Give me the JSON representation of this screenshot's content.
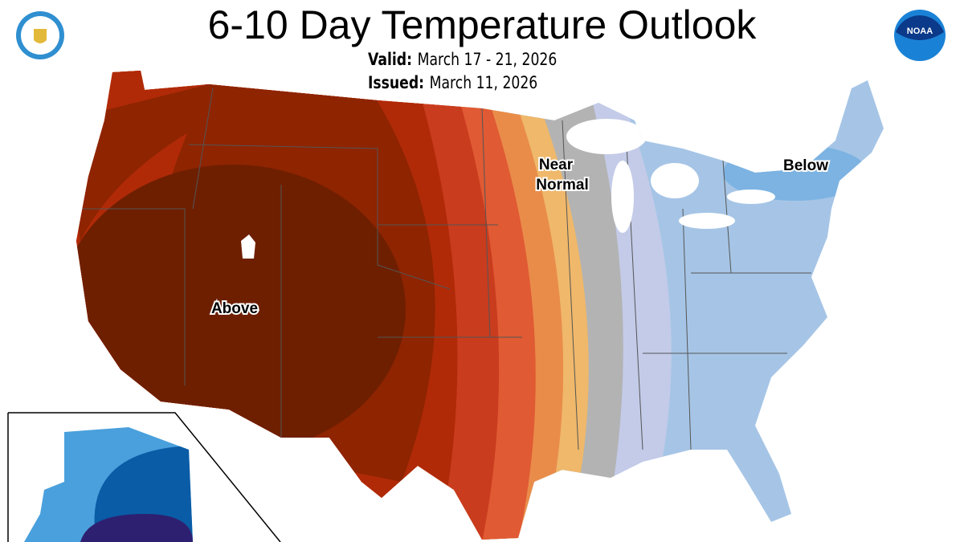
{
  "header": {
    "title": "6-10 Day Temperature Outlook",
    "valid_label": "Valid:",
    "valid_value": "March 17 - 21, 2026",
    "issued_label": "Issued:",
    "issued_value": "March 11, 2026"
  },
  "logos": {
    "left": "department-of-commerce-seal",
    "right": "noaa-logo",
    "right_text": "NOAA"
  },
  "map": {
    "labels": {
      "above": "Above",
      "near": "Near",
      "normal": "Normal",
      "below": "Below"
    },
    "colors": {
      "above_strongest": "#6e1f00",
      "above_very_high": "#8e2400",
      "above_high": "#b02a08",
      "above_mod": "#c93c1e",
      "above_low": "#e05a33",
      "above_lean": "#e98c4a",
      "above_slight": "#efb86a",
      "near_normal": "#b3b3b3",
      "below_slight": "#c3cbe8",
      "below_lean": "#a6c5e6",
      "below_mod": "#7cb3e2",
      "alaska_below_low": "#4aa0dc",
      "alaska_below_high": "#0a5ca6",
      "alaska_below_strongest": "#2e2070"
    }
  }
}
